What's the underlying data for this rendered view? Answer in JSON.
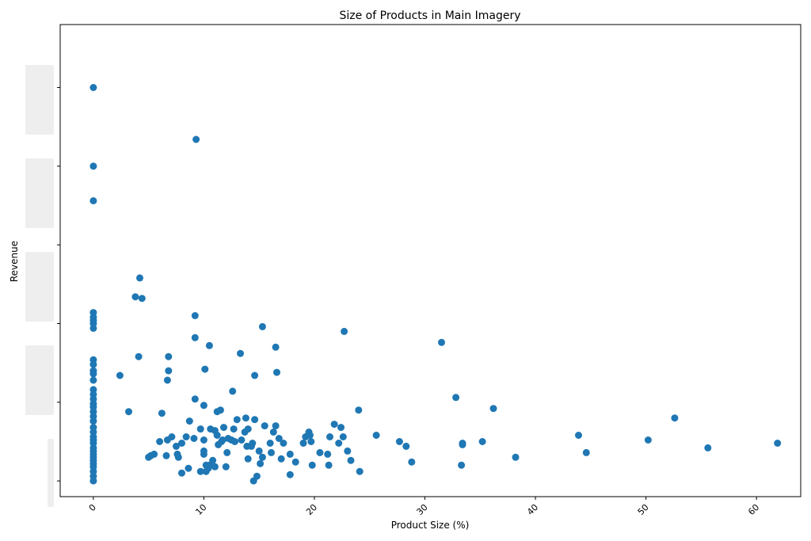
{
  "chart_data": {
    "type": "scatter",
    "title": "Size of Products in Main Imagery",
    "xlabel": "Product Size (%)",
    "ylabel": "Revenue",
    "xlim": [
      -3,
      64
    ],
    "ylim": [
      -1,
      29
    ],
    "xticks": [
      0,
      10,
      20,
      30,
      40,
      50,
      60
    ],
    "xtick_labels": [
      "0",
      "10",
      "20",
      "30",
      "40",
      "50",
      "60"
    ],
    "ytick_values": [
      0,
      5,
      10,
      15,
      20,
      25
    ],
    "ytick_labels_obscured": true,
    "grid": false,
    "marker_color": "#1f77b4",
    "points": [
      [
        0,
        25
      ],
      [
        0,
        20
      ],
      [
        0,
        17.8
      ],
      [
        0,
        10.7
      ],
      [
        0,
        10.4
      ],
      [
        0,
        10.2
      ],
      [
        0,
        10
      ],
      [
        0,
        9.7
      ],
      [
        0,
        7.7
      ],
      [
        0,
        7.4
      ],
      [
        0,
        7
      ],
      [
        0,
        6.8
      ],
      [
        0,
        6.4
      ],
      [
        0,
        5.8
      ],
      [
        0,
        5.5
      ],
      [
        0,
        5.2
      ],
      [
        0,
        4.9
      ],
      [
        0,
        4.7
      ],
      [
        0,
        4.4
      ],
      [
        0,
        4.1
      ],
      [
        0,
        3.8
      ],
      [
        0,
        3.4
      ],
      [
        0,
        3.1
      ],
      [
        0,
        2.8
      ],
      [
        0,
        2.6
      ],
      [
        0,
        2.4
      ],
      [
        0,
        2.1
      ],
      [
        0,
        1.9
      ],
      [
        0,
        1.7
      ],
      [
        0,
        1.5
      ],
      [
        0,
        1.3
      ],
      [
        0,
        1.1
      ],
      [
        0,
        0.9
      ],
      [
        0,
        0.6
      ],
      [
        0,
        0.3
      ],
      [
        0,
        0
      ],
      [
        2.4,
        6.7
      ],
      [
        3.2,
        4.4
      ],
      [
        3.8,
        11.7
      ],
      [
        4.2,
        12.9
      ],
      [
        4.4,
        11.6
      ],
      [
        4.1,
        7.9
      ],
      [
        5,
        1.5
      ],
      [
        5.2,
        1.6
      ],
      [
        5.5,
        1.7
      ],
      [
        6,
        2.5
      ],
      [
        6.2,
        4.3
      ],
      [
        6.6,
        1.6
      ],
      [
        6.7,
        2.6
      ],
      [
        6.7,
        6.4
      ],
      [
        6.8,
        7.9
      ],
      [
        6.8,
        7
      ],
      [
        7.1,
        2.8
      ],
      [
        7.5,
        2.2
      ],
      [
        7.6,
        1.7
      ],
      [
        7.7,
        1.5
      ],
      [
        8,
        2.4
      ],
      [
        8,
        0.5
      ],
      [
        8.4,
        2.8
      ],
      [
        8.6,
        0.8
      ],
      [
        8.7,
        3.8
      ],
      [
        9.1,
        2.7
      ],
      [
        9.2,
        5.2
      ],
      [
        9.2,
        10.5
      ],
      [
        9.2,
        9.1
      ],
      [
        9.3,
        21.7
      ],
      [
        9.7,
        3.3
      ],
      [
        9.7,
        0.6
      ],
      [
        10,
        4.8
      ],
      [
        10,
        2.6
      ],
      [
        10,
        1.9
      ],
      [
        10,
        1.7
      ],
      [
        10.1,
        7.1
      ],
      [
        10.2,
        1
      ],
      [
        10.2,
        0.6
      ],
      [
        10.4,
        0.8
      ],
      [
        10.5,
        8.6
      ],
      [
        10.5,
        1
      ],
      [
        10.6,
        3.3
      ],
      [
        10.8,
        1.3
      ],
      [
        11,
        0.9
      ],
      [
        11,
        3.2
      ],
      [
        11.2,
        2.9
      ],
      [
        11.2,
        4.4
      ],
      [
        11.3,
        2.3
      ],
      [
        11.5,
        4.5
      ],
      [
        11.6,
        2.5
      ],
      [
        11.7,
        2.6
      ],
      [
        11.8,
        3.4
      ],
      [
        12,
        0.9
      ],
      [
        12.1,
        1.8
      ],
      [
        12.2,
        2.7
      ],
      [
        12.5,
        2.6
      ],
      [
        12.6,
        5.7
      ],
      [
        12.7,
        3.3
      ],
      [
        12.8,
        2.5
      ],
      [
        13,
        3.9
      ],
      [
        13.3,
        8.1
      ],
      [
        13.4,
        2.6
      ],
      [
        13.7,
        3.1
      ],
      [
        13.8,
        4
      ],
      [
        13.9,
        2.2
      ],
      [
        14,
        1.4
      ],
      [
        14,
        3.3
      ],
      [
        14.3,
        2.2
      ],
      [
        14.4,
        2.4
      ],
      [
        14.5,
        0
      ],
      [
        14.6,
        3.9
      ],
      [
        14.6,
        6.7
      ],
      [
        14.8,
        0.3
      ],
      [
        15,
        1.9
      ],
      [
        15.1,
        1.1
      ],
      [
        15.3,
        1.5
      ],
      [
        15.3,
        9.8
      ],
      [
        15.5,
        3.5
      ],
      [
        16,
        2.4
      ],
      [
        16.1,
        1.8
      ],
      [
        16.3,
        3.1
      ],
      [
        16.5,
        3.5
      ],
      [
        16.5,
        8.5
      ],
      [
        16.6,
        6.9
      ],
      [
        16.8,
        2.7
      ],
      [
        17,
        1.4
      ],
      [
        17.2,
        2.4
      ],
      [
        17.8,
        1.7
      ],
      [
        17.8,
        0.4
      ],
      [
        18.3,
        1.2
      ],
      [
        19,
        2.4
      ],
      [
        19.2,
        2.8
      ],
      [
        19.5,
        3.1
      ],
      [
        19.6,
        2.9
      ],
      [
        19.7,
        2.5
      ],
      [
        19.8,
        1
      ],
      [
        20.5,
        1.8
      ],
      [
        21.2,
        1.7
      ],
      [
        21.3,
        1
      ],
      [
        21.4,
        2.8
      ],
      [
        21.8,
        3.6
      ],
      [
        22.2,
        2.4
      ],
      [
        22.4,
        3.4
      ],
      [
        22.6,
        2.8
      ],
      [
        22.7,
        9.5
      ],
      [
        23,
        1.9
      ],
      [
        23.3,
        1.3
      ],
      [
        24,
        4.5
      ],
      [
        24.1,
        0.6
      ],
      [
        25.6,
        2.9
      ],
      [
        27.7,
        2.5
      ],
      [
        28.3,
        2.2
      ],
      [
        28.8,
        1.2
      ],
      [
        31.5,
        8.8
      ],
      [
        32.8,
        5.3
      ],
      [
        33.3,
        1
      ],
      [
        33.4,
        2.4
      ],
      [
        33.4,
        2.3
      ],
      [
        35.2,
        2.5
      ],
      [
        36.2,
        4.6
      ],
      [
        38.2,
        1.5
      ],
      [
        43.9,
        2.9
      ],
      [
        44.6,
        1.8
      ],
      [
        50.2,
        2.6
      ],
      [
        52.6,
        4
      ],
      [
        55.6,
        2.1
      ],
      [
        61.9,
        2.4
      ]
    ]
  }
}
